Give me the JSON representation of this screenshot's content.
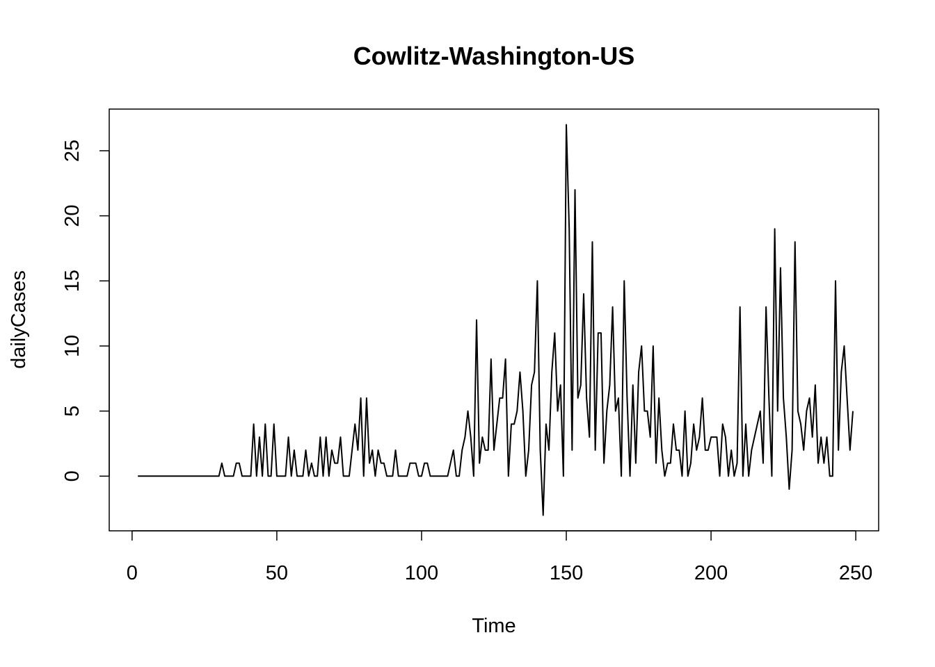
{
  "chart_data": {
    "type": "line",
    "title": "Cowlitz-Washington-US",
    "xlabel": "Time",
    "ylabel": "dailyCases",
    "xlim": [
      -7.9,
      257.9
    ],
    "ylim": [
      -4.2,
      28.2
    ],
    "x_ticks": [
      0,
      50,
      100,
      150,
      200,
      250
    ],
    "y_ticks": [
      0,
      5,
      10,
      15,
      20,
      25
    ],
    "x_tick_labels": [
      "0",
      "50",
      "100",
      "150",
      "200",
      "250"
    ],
    "y_tick_labels": [
      "0",
      "5",
      "10",
      "15",
      "20",
      "25"
    ],
    "grid": false,
    "line_color": "#000000",
    "series": [
      {
        "x_start": 2,
        "values": [
          0,
          0,
          0,
          0,
          0,
          0,
          0,
          0,
          0,
          0,
          0,
          0,
          0,
          0,
          0,
          0,
          0,
          0,
          0,
          0,
          0,
          0,
          0,
          0,
          0,
          0,
          0,
          0,
          0,
          1,
          0,
          0,
          0,
          0,
          1,
          1,
          0,
          0,
          0,
          0,
          4,
          0,
          3,
          0,
          4,
          0,
          0,
          4,
          0,
          0,
          0,
          0,
          3,
          0,
          2,
          0,
          0,
          0,
          2,
          0,
          1,
          0,
          0,
          3,
          0,
          3,
          0,
          2,
          1,
          1,
          3,
          0,
          0,
          0,
          2,
          4,
          2,
          6,
          0,
          6,
          1,
          2,
          0,
          2,
          1,
          1,
          0,
          0,
          0,
          2,
          0,
          0,
          0,
          0,
          1,
          1,
          1,
          0,
          0,
          1,
          1,
          0,
          0,
          0,
          0,
          0,
          0,
          0,
          1,
          2,
          0,
          0,
          2,
          3,
          5,
          3,
          0,
          12,
          1,
          3,
          2,
          2,
          9,
          2,
          4,
          6,
          6,
          9,
          0,
          4,
          4,
          5,
          8,
          5,
          0,
          2,
          7,
          8,
          15,
          2,
          -3,
          4,
          2,
          8,
          11,
          5,
          7,
          0,
          27,
          19,
          2,
          22,
          6,
          7,
          14,
          6,
          3,
          18,
          2,
          11,
          11,
          1,
          5,
          7,
          13,
          5,
          6,
          0,
          15,
          6,
          0,
          7,
          1,
          8,
          10,
          5,
          5,
          3,
          10,
          1,
          6,
          2,
          0,
          1,
          1,
          4,
          2,
          2,
          0,
          5,
          0,
          1,
          4,
          2,
          3,
          6,
          2,
          2,
          3,
          3,
          3,
          0,
          4,
          3,
          0,
          2,
          0,
          1,
          13,
          0,
          4,
          0,
          2,
          3,
          4,
          5,
          1,
          13,
          6,
          0,
          19,
          5,
          16,
          6,
          3,
          -1,
          2,
          18,
          5,
          4,
          2,
          5,
          6,
          3,
          7,
          1,
          3,
          1,
          3,
          0,
          0,
          15,
          2,
          8,
          10,
          6,
          2,
          5
        ]
      }
    ]
  }
}
